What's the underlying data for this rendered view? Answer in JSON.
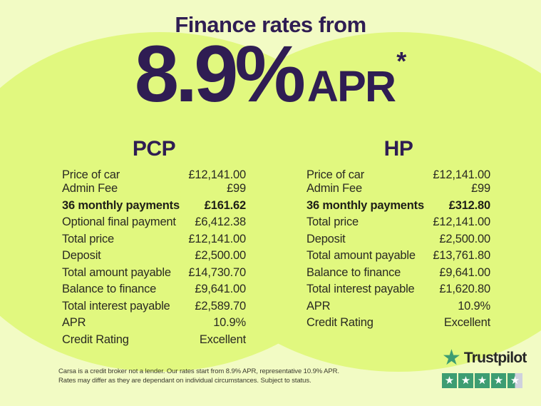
{
  "header": {
    "title": "Finance rates from",
    "rate_value": "8.9%",
    "rate_unit": "APR",
    "rate_asterisk": "*"
  },
  "tables": {
    "pcp": {
      "title": "PCP",
      "rows": [
        {
          "label": "Price of car",
          "value": "£12,141.00",
          "bold": false
        },
        {
          "label": "Admin Fee",
          "value": "£99",
          "bold": false
        },
        {
          "label": "36 monthly payments",
          "value": "£161.62",
          "bold": true
        },
        {
          "label": "Optional final payment",
          "value": "£6,412.38",
          "bold": false
        },
        {
          "label": "Total price",
          "value": "£12,141.00",
          "bold": false
        },
        {
          "label": "Deposit",
          "value": "£2,500.00",
          "bold": false
        },
        {
          "label": "Total amount payable",
          "value": "£14,730.70",
          "bold": false
        },
        {
          "label": "Balance to finance",
          "value": "£9,641.00",
          "bold": false
        },
        {
          "label": "Total interest payable",
          "value": "£2,589.70",
          "bold": false
        },
        {
          "label": "APR",
          "value": "10.9%",
          "bold": false
        },
        {
          "label": "Credit Rating",
          "value": "Excellent",
          "bold": false
        }
      ]
    },
    "hp": {
      "title": "HP",
      "rows": [
        {
          "label": "Price of car",
          "value": "£12,141.00",
          "bold": false
        },
        {
          "label": "Admin Fee",
          "value": "£99",
          "bold": false
        },
        {
          "label": "36 monthly payments",
          "value": "£312.80",
          "bold": true
        },
        {
          "label": "Total price",
          "value": "£12,141.00",
          "bold": false
        },
        {
          "label": "Deposit",
          "value": "£2,500.00",
          "bold": false
        },
        {
          "label": "Total amount payable",
          "value": "£13,761.80",
          "bold": false
        },
        {
          "label": "Balance to finance",
          "value": "£9,641.00",
          "bold": false
        },
        {
          "label": "Total interest payable",
          "value": "£1,620.80",
          "bold": false
        },
        {
          "label": "APR",
          "value": "10.9%",
          "bold": false
        },
        {
          "label": "Credit Rating",
          "value": "Excellent",
          "bold": false
        }
      ]
    }
  },
  "footer": {
    "disclaimer_line1": "Carsa is a credit broker not a lender. Our rates start from 8.9% APR, representative 10.9% APR.",
    "disclaimer_line2": "Rates may differ as they are dependant on individual circumstances. Subject to status.",
    "trustpilot": {
      "brand": "Trustpilot",
      "rating_stars": 4.5,
      "star_glyph": "★"
    }
  },
  "colors": {
    "background": "#f2fbc4",
    "circle": "#e1f87f",
    "heading_purple": "#2f1d53",
    "body_text": "#2a2a22",
    "trustpilot_green": "#3d9d72",
    "trustpilot_empty_gray": "#cfd1de"
  }
}
